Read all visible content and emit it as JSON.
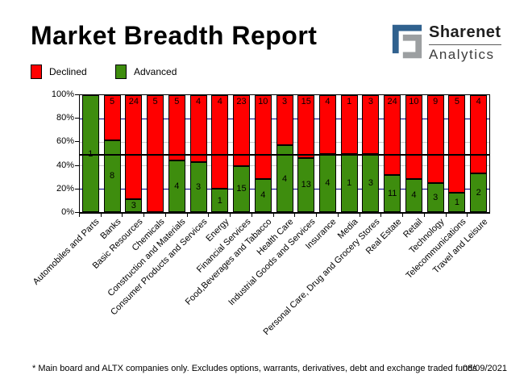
{
  "header": {
    "title": "Market Breadth Report",
    "brand": {
      "name": "Sharenet",
      "sub": "Analytics",
      "mark_blue": "#30618e",
      "mark_gray": "#9c9fa1"
    }
  },
  "legend": [
    {
      "label": "Declined",
      "color": "#ff0000"
    },
    {
      "label": "Advanced",
      "color": "#3e8d0e"
    }
  ],
  "chart_data": {
    "type": "bar",
    "stacked": true,
    "note": "Each bar shows share of advancing vs declining companies; numbers on segments are company counts",
    "categories": [
      "Automobiles and Parts",
      "Banks",
      "Basic Resources",
      "Chemicals",
      "Construction and Materials",
      "Consumer Products and Services",
      "Energy",
      "Financial Services",
      "Food,Beverages and Tabacco",
      "Health Care",
      "Industrial Goods and Services",
      "Insurance",
      "Media",
      "Personal Care, Drug and Grocery Stores",
      "Real Estate",
      "Retail",
      "Technology",
      "Telecommunications",
      "Travel and Leisure"
    ],
    "series": [
      {
        "name": "Declined",
        "color": "#ff0000",
        "values": [
          0,
          5,
          24,
          5,
          5,
          4,
          4,
          23,
          10,
          3,
          15,
          4,
          1,
          3,
          24,
          10,
          9,
          5,
          4
        ]
      },
      {
        "name": "Advanced",
        "color": "#3e8d0e",
        "values": [
          1,
          8,
          3,
          0,
          4,
          3,
          1,
          15,
          4,
          4,
          13,
          4,
          1,
          3,
          11,
          4,
          3,
          1,
          2
        ]
      }
    ],
    "y_ticks": [
      "100%",
      "80%",
      "60%",
      "40%",
      "20%",
      "0%"
    ],
    "ylim": [
      0,
      100
    ],
    "ylabel": "",
    "xlabel": "",
    "reference_line_pct": 50,
    "gridlines": {
      "navy_at": [
        80,
        20
      ],
      "gray_at": [
        60,
        40
      ],
      "navy_color": "#000080",
      "gray_color": "#c9c9c9"
    },
    "legend_position": "top-left"
  },
  "footer": {
    "note": "* Main board and ALTX companies only. Excludes options, warrants, derivatives, debt and exchange traded funds",
    "date": "08/09/2021"
  }
}
